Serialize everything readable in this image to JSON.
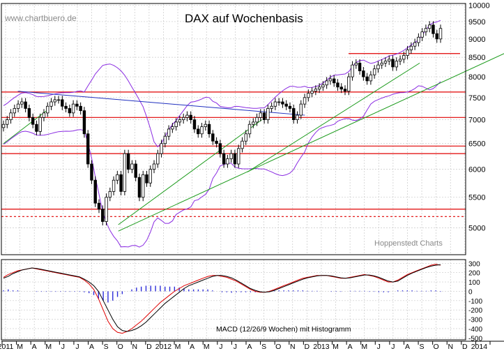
{
  "watermark": "www.chartbuero.de",
  "source_label": "Hoppenstedt Charts",
  "colors": {
    "candle": "#000000",
    "bollinger": "#8a2be2",
    "support_resistance": "#e00000",
    "trend_green": "#1a9a1a",
    "trend_blue": "#1f2fbf",
    "macd_line": "#000000",
    "signal_line": "#e00000",
    "histogram": "#2d2dd8",
    "grid": "#c8c8c8"
  },
  "chart_data": [
    {
      "type": "candlestick",
      "title": "DAX auf Wochenbasis",
      "x_tick_labels": [
        "2011",
        "M",
        "A",
        "M",
        "J",
        "J",
        "A",
        "S",
        "O",
        "N",
        "D",
        "2012",
        "M",
        "A",
        "M",
        "J",
        "J",
        "A",
        "S",
        "O",
        "N",
        "D",
        "2013",
        "M",
        "A",
        "M",
        "J",
        "J",
        "A",
        "S",
        "O",
        "N",
        "D",
        "2014",
        ""
      ],
      "y_tick_labels": [
        "10000",
        "9500",
        "9000",
        "8500",
        "8000",
        "7500",
        "7000",
        "6500",
        "6000",
        "5500",
        "5000"
      ],
      "ylim": [
        4600,
        10050
      ],
      "y_scale": "log",
      "grid": true,
      "series_close_approx": [
        6900,
        7000,
        7150,
        7250,
        7350,
        7400,
        7250,
        7050,
        6900,
        6750,
        7050,
        7150,
        7300,
        7400,
        7450,
        7450,
        7300,
        7250,
        7150,
        7350,
        7300,
        7200,
        6700,
        6100,
        5800,
        5400,
        5300,
        5100,
        5500,
        5600,
        5800,
        5900,
        5600,
        6300,
        6000,
        6100,
        5850,
        5500,
        5900,
        5750,
        6000,
        6100,
        6300,
        6500,
        6650,
        6800,
        6850,
        6950,
        7000,
        7050,
        7100,
        7000,
        6800,
        6700,
        6850,
        6900,
        6700,
        6550,
        6500,
        6300,
        6100,
        6200,
        6300,
        6100,
        6400,
        6550,
        6700,
        6900,
        6950,
        7050,
        7150,
        7000,
        7250,
        7300,
        7400,
        7400,
        7350,
        7300,
        7250,
        7000,
        7100,
        7350,
        7500,
        7600,
        7650,
        7700,
        7750,
        7800,
        7900,
        7950,
        7850,
        7750,
        7700,
        7650,
        8000,
        8300,
        8350,
        8150,
        8000,
        7900,
        8050,
        8200,
        8300,
        8350,
        8400,
        8450,
        8250,
        8400,
        8450,
        8550,
        8700,
        8800,
        8900,
        9050,
        9200,
        9300,
        9400,
        9150,
        9000,
        9300
      ],
      "horizontal_levels": [
        8600,
        7630,
        7050,
        6450,
        6300,
        5300,
        5180
      ],
      "trendlines": [
        {
          "color": "trend_blue",
          "from": [
            "2011-02",
            7650
          ],
          "to": [
            "2012-10",
            7100
          ]
        },
        {
          "color": "trend_green",
          "from": [
            "2011-09",
            4950
          ],
          "to": [
            "2014-01",
            8800
          ]
        },
        {
          "color": "trend_green",
          "from": [
            "2012-06",
            5950
          ],
          "to": [
            "2013-06",
            8350
          ]
        },
        {
          "color": "trend_green",
          "from": [
            "2011-09",
            5050
          ],
          "to": [
            "2012-07",
            7000
          ]
        },
        {
          "color": "trend_green",
          "from": [
            "2011-01",
            6500
          ],
          "to": [
            "2011-04",
            7200
          ]
        }
      ]
    },
    {
      "type": "line",
      "title": "MACD (12/26/9 Wochen) mit Histogramm",
      "y_tick_labels": [
        "300",
        "200",
        "100",
        "0",
        "-100",
        "-200",
        "-300",
        "-400",
        "-500"
      ],
      "ylim": [
        -520,
        340
      ],
      "grid": true,
      "series": [
        {
          "values_approx": [
            150,
            180,
            200,
            220,
            230,
            240,
            250,
            240,
            230,
            220,
            210,
            200,
            190,
            180,
            170,
            160,
            150,
            120,
            80,
            20,
            -80,
            -200,
            -320,
            -400,
            -440,
            -450,
            -430,
            -400,
            -360,
            -320,
            -270,
            -220,
            -170,
            -120,
            -80,
            -40,
            0,
            30,
            60,
            80,
            100,
            120,
            140,
            160,
            170,
            170,
            160,
            150,
            130,
            110,
            80,
            50,
            20,
            0,
            -10,
            -10,
            0,
            20,
            40,
            60,
            80,
            100,
            120,
            140,
            150,
            160,
            170,
            170,
            170,
            160,
            150,
            140,
            140,
            150,
            160,
            170,
            180,
            170,
            160,
            140,
            120,
            100,
            100,
            120,
            150,
            180,
            200,
            220,
            240,
            260,
            280,
            290,
            280
          ]
        },
        {
          "values_approx": [
            140,
            160,
            190,
            210,
            230,
            240,
            250,
            245,
            235,
            225,
            215,
            205,
            195,
            185,
            175,
            165,
            155,
            130,
            100,
            60,
            0,
            -100,
            -200,
            -300,
            -380,
            -420,
            -430,
            -420,
            -400,
            -370,
            -330,
            -280,
            -230,
            -180,
            -130,
            -90,
            -50,
            -10,
            30,
            60,
            80,
            100,
            120,
            140,
            160,
            170,
            170,
            160,
            145,
            120,
            90,
            60,
            30,
            10,
            -5,
            -10,
            -5,
            10,
            30,
            50,
            70,
            90,
            110,
            130,
            145,
            155,
            165,
            170,
            170,
            165,
            155,
            145,
            140,
            145,
            155,
            165,
            175,
            175,
            165,
            150,
            130,
            110,
            100,
            110,
            140,
            170,
            195,
            215,
            235,
            255,
            270,
            280,
            285
          ]
        }
      ],
      "histogram_approx": [
        10,
        20,
        10,
        10,
        0,
        0,
        0,
        -5,
        -5,
        -5,
        -5,
        -5,
        -5,
        -5,
        -5,
        -5,
        -5,
        -10,
        -20,
        -40,
        -80,
        -100,
        -120,
        -100,
        -60,
        -30,
        0,
        20,
        40,
        50,
        60,
        60,
        60,
        60,
        50,
        50,
        50,
        40,
        30,
        20,
        20,
        20,
        20,
        20,
        10,
        0,
        -10,
        -10,
        -15,
        -10,
        -10,
        -10,
        -10,
        -10,
        -5,
        0,
        5,
        10,
        10,
        10,
        10,
        10,
        10,
        10,
        5,
        5,
        5,
        0,
        0,
        -5,
        -5,
        -5,
        0,
        5,
        5,
        5,
        5,
        -5,
        -5,
        -10,
        -10,
        -10,
        0,
        10,
        10,
        10,
        10,
        5,
        5,
        5,
        10,
        10,
        -5
      ]
    }
  ],
  "x_year_labels": [
    "2011",
    "2012",
    "2013",
    "2014"
  ]
}
